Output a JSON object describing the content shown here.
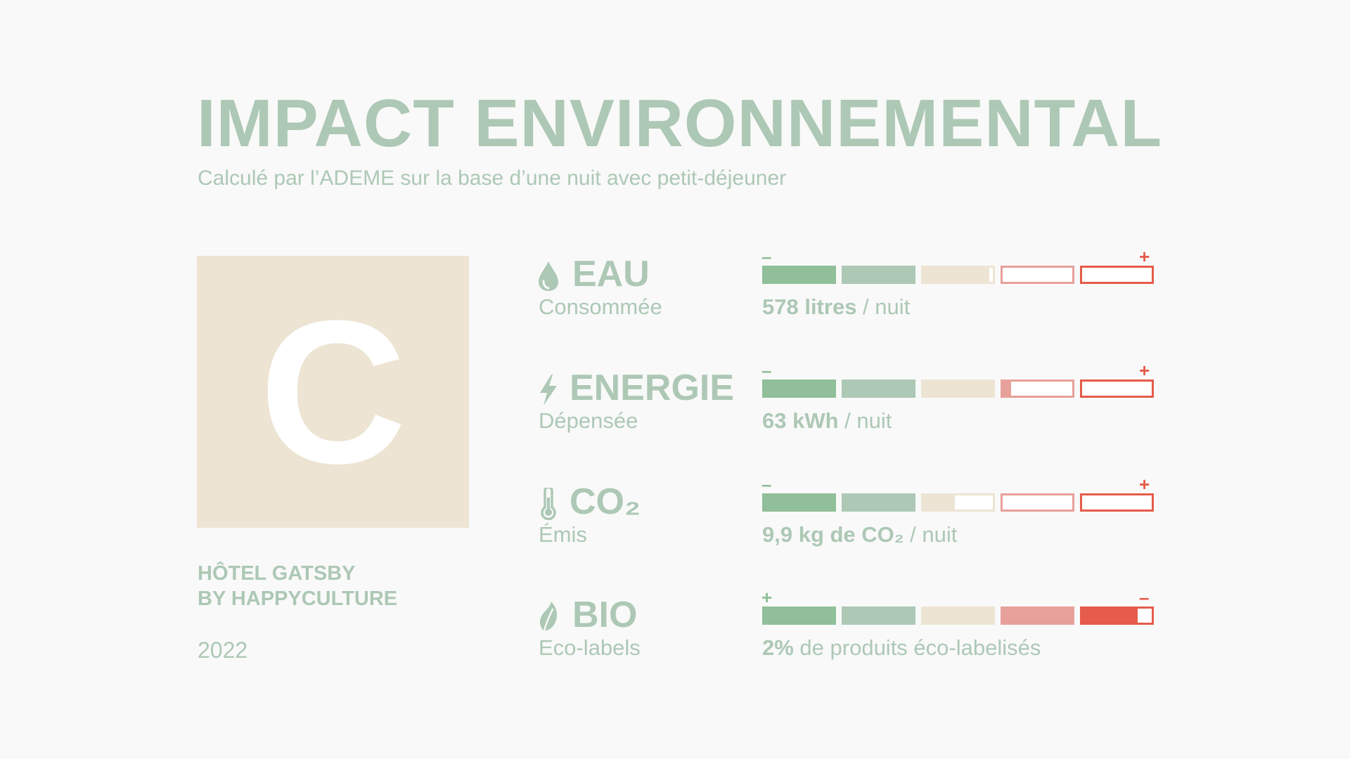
{
  "header": {
    "title": "IMPACT ENVIRONNEMENTAL",
    "subtitle": "Calculé par l’ADEME sur la base d’une nuit avec petit-déjeuner"
  },
  "grade": {
    "letter": "C",
    "color": "#ede4d4"
  },
  "hotel": {
    "line1": "HÔTEL GATSBY",
    "line2": "BY HAPPYCULTURE"
  },
  "year": "2022",
  "colors": {
    "green": "#90bf99",
    "sage": "#adc8b5",
    "beige": "#ede4d4",
    "pink": "#e8a09a",
    "red": "#e55c4a",
    "text": "#adc8b5"
  },
  "metrics": [
    {
      "id": "eau",
      "icon": "water-drop-icon",
      "label": "EAU",
      "sublabel": "Consommée",
      "value_bold": "578 litres",
      "value_rest": " / nuit",
      "scale_left": "–",
      "scale_right": "+",
      "level": 0.59
    },
    {
      "id": "energie",
      "icon": "lightning-icon",
      "label": "ENERGIE",
      "sublabel": "Dépensée",
      "value_bold": "63 kWh",
      "value_rest": " / nuit",
      "scale_left": "–",
      "scale_right": "+",
      "level": 0.625
    },
    {
      "id": "co2",
      "icon": "thermometer-icon",
      "label": "CO₂",
      "sublabel": "Émis",
      "value_bold": "9,9 kg de CO₂",
      "value_rest": " / nuit",
      "scale_left": "–",
      "scale_right": "+",
      "level": 0.49
    },
    {
      "id": "bio",
      "icon": "leaf-icon",
      "label": "BIO",
      "sublabel": "Eco-labels",
      "value_bold": "2%",
      "value_rest": " de produits éco-labelisés",
      "scale_left": "+",
      "scale_right": "–",
      "level": 0.96
    }
  ]
}
